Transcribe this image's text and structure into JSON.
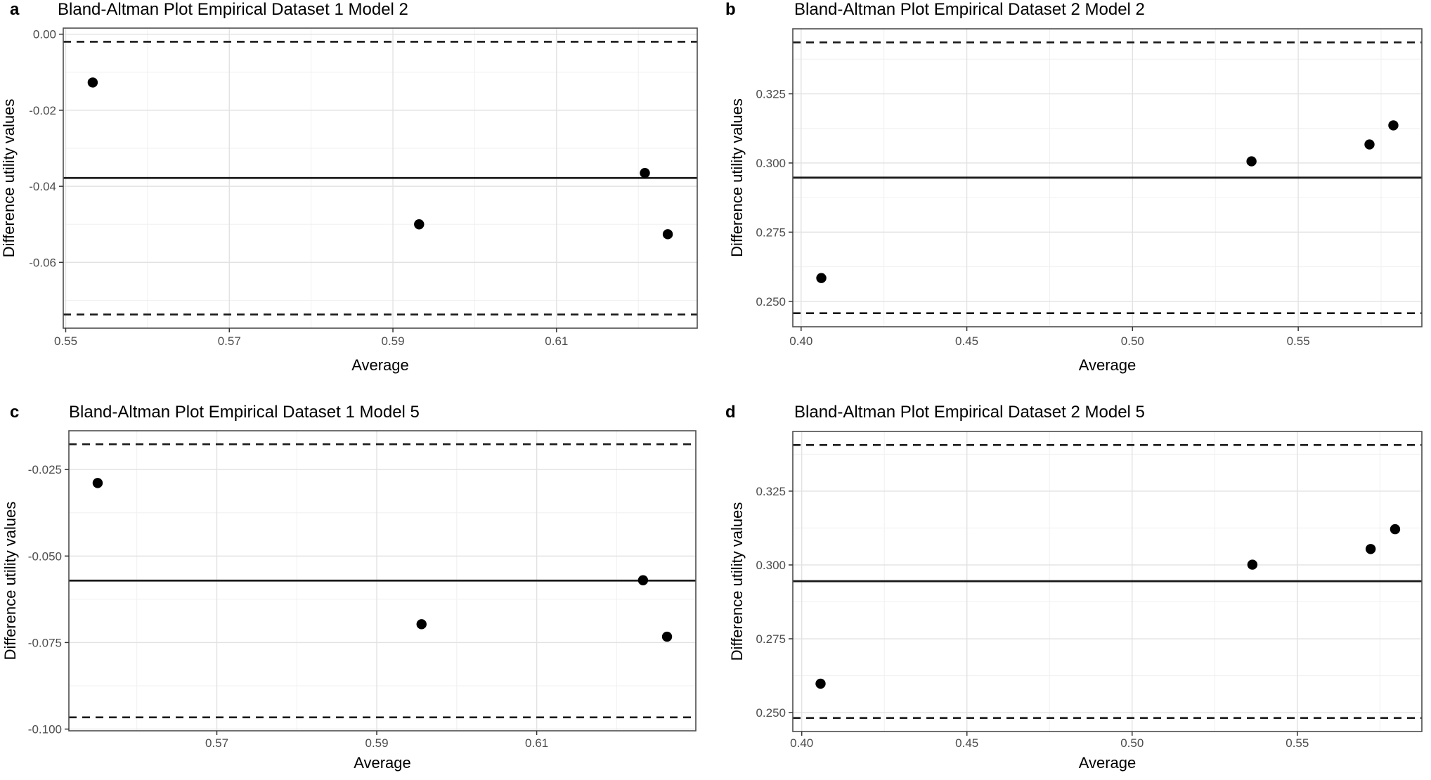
{
  "figure": {
    "background": "#ffffff",
    "ylabel_shared": "Difference utility values",
    "xlabel_shared": "Average"
  },
  "colors": {
    "point": "#000000",
    "ref_line": "#1a1a1a",
    "grid_major": "#e2e2e2",
    "grid_minor": "#f0f0f0",
    "panel_border": "#4d4d4d",
    "tick_mark": "#333333",
    "tick_label": "#4d4d4d",
    "text": "#000000"
  },
  "chart_data": [
    {
      "type": "scatter",
      "panel_label": "a",
      "title": "Bland-Altman Plot Empirical Dataset 1 Model 2",
      "xlabel": "Average",
      "ylabel": "Difference utility values",
      "xlim": [
        0.5497,
        0.6272
      ],
      "ylim": [
        -0.0773,
        0.0016
      ],
      "xticks": [
        0.55,
        0.57,
        0.59,
        0.61
      ],
      "xtick_labels": [
        "0.55",
        "0.57",
        "0.59",
        "0.61"
      ],
      "yticks": [
        -0.06,
        -0.04,
        -0.02,
        0.0
      ],
      "ytick_labels": [
        "-0.06",
        "-0.04",
        "-0.02",
        "0.00"
      ],
      "points": [
        [
          0.5533,
          -0.0127
        ],
        [
          0.5932,
          -0.05
        ],
        [
          0.6208,
          -0.0365
        ],
        [
          0.6236,
          -0.0526
        ]
      ],
      "mean_line": -0.0378,
      "loa_upper": -0.002,
      "loa_lower": -0.0737,
      "grid": true,
      "legend": "none"
    },
    {
      "type": "scatter",
      "panel_label": "b",
      "title": "Bland-Altman Plot Empirical Dataset 2 Model 2",
      "xlabel": "Average",
      "ylabel": "Difference utility values",
      "xlim": [
        0.3975,
        0.5873
      ],
      "ylim": [
        0.2408,
        0.3485
      ],
      "xticks": [
        0.4,
        0.45,
        0.5,
        0.55
      ],
      "xtick_labels": [
        "0.40",
        "0.45",
        "0.50",
        "0.55"
      ],
      "yticks": [
        0.25,
        0.275,
        0.3,
        0.325
      ],
      "ytick_labels": [
        "0.250",
        "0.275",
        "0.300",
        "0.325"
      ],
      "points": [
        [
          0.4061,
          0.2584
        ],
        [
          0.5359,
          0.3006
        ],
        [
          0.5715,
          0.3067
        ],
        [
          0.5787,
          0.3136
        ]
      ],
      "mean_line": 0.2947,
      "loa_upper": 0.3436,
      "loa_lower": 0.2457,
      "grid": true,
      "legend": "none"
    },
    {
      "type": "scatter",
      "panel_label": "c",
      "title": "Bland-Altman Plot Empirical Dataset 1 Model 5",
      "xlabel": "Average",
      "ylabel": "Difference utility values",
      "xlim": [
        0.5515,
        0.6299
      ],
      "ylim": [
        -0.1005,
        -0.0138
      ],
      "xticks": [
        0.57,
        0.59,
        0.61
      ],
      "xtick_labels": [
        "0.57",
        "0.59",
        "0.61"
      ],
      "yticks": [
        -0.1,
        -0.075,
        -0.05,
        -0.025
      ],
      "ytick_labels": [
        "-0.100",
        "-0.075",
        "-0.050",
        "-0.025"
      ],
      "points": [
        [
          0.5551,
          -0.0289
        ],
        [
          0.5956,
          -0.0697
        ],
        [
          0.6233,
          -0.057
        ],
        [
          0.6263,
          -0.0733
        ]
      ],
      "mean_line": -0.0571,
      "loa_upper": -0.0177,
      "loa_lower": -0.0966,
      "grid": true,
      "legend": "none"
    },
    {
      "type": "scatter",
      "panel_label": "d",
      "title": "Bland-Altman Plot Empirical Dataset 2 Model 5",
      "xlabel": "Average",
      "ylabel": "Difference utility values",
      "xlim": [
        0.3973,
        0.5877
      ],
      "ylim": [
        0.2436,
        0.3452
      ],
      "xticks": [
        0.4,
        0.45,
        0.5,
        0.55
      ],
      "xtick_labels": [
        "0.40",
        "0.45",
        "0.50",
        "0.55"
      ],
      "yticks": [
        0.25,
        0.275,
        0.3,
        0.325
      ],
      "ytick_labels": [
        "0.250",
        "0.275",
        "0.300",
        "0.325"
      ],
      "points": [
        [
          0.4057,
          0.2598
        ],
        [
          0.5364,
          0.3001
        ],
        [
          0.5722,
          0.3054
        ],
        [
          0.5796,
          0.3121
        ]
      ],
      "mean_line": 0.2945,
      "loa_upper": 0.3406,
      "loa_lower": 0.2482,
      "grid": true,
      "legend": "none"
    }
  ]
}
